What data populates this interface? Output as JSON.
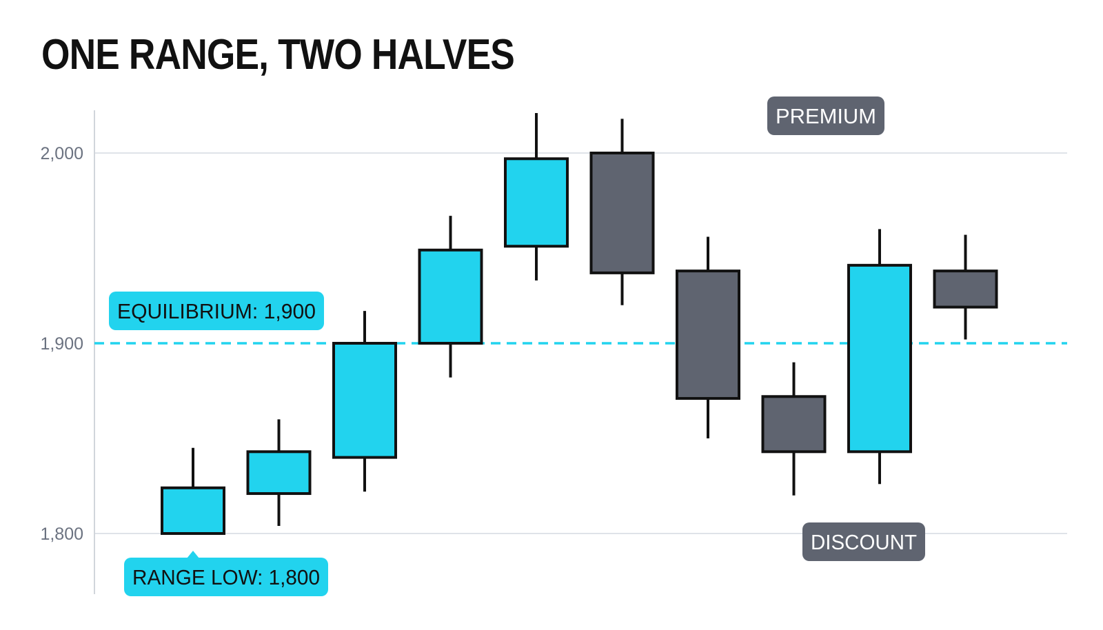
{
  "chart_data": {
    "type": "candlestick",
    "title": "ONE RANGE, TWO HALVES",
    "xlabel": "",
    "ylabel": "",
    "ylim": [
      1770,
      2023
    ],
    "yticks": [
      {
        "value": 1800,
        "label": "1,800"
      },
      {
        "value": 1900,
        "label": "1,900"
      },
      {
        "value": 2000,
        "label": "2,000"
      }
    ],
    "grid": true,
    "candles": [
      {
        "open": 1800,
        "high": 1845,
        "low": 1800,
        "close": 1824,
        "direction": "up"
      },
      {
        "open": 1821,
        "high": 1860,
        "low": 1804,
        "close": 1843,
        "direction": "up"
      },
      {
        "open": 1840,
        "high": 1917,
        "low": 1822,
        "close": 1900,
        "direction": "up"
      },
      {
        "open": 1900,
        "high": 1967,
        "low": 1882,
        "close": 1949,
        "direction": "up"
      },
      {
        "open": 1951,
        "high": 2021,
        "low": 1933,
        "close": 1997,
        "direction": "up"
      },
      {
        "open": 2000,
        "high": 2018,
        "low": 1920,
        "close": 1937,
        "direction": "down"
      },
      {
        "open": 1938,
        "high": 1956,
        "low": 1850,
        "close": 1871,
        "direction": "down"
      },
      {
        "open": 1872,
        "high": 1890,
        "low": 1820,
        "close": 1843,
        "direction": "down"
      },
      {
        "open": 1843,
        "high": 1960,
        "low": 1826,
        "close": 1941,
        "direction": "up"
      },
      {
        "open": 1938,
        "high": 1957,
        "low": 1902,
        "close": 1919,
        "direction": "down"
      }
    ],
    "equilibrium": {
      "value": 1900,
      "label": "EQUILIBRIUM: 1,900"
    },
    "range_low": {
      "value": 1800,
      "label": "RANGE LOW: 1,800"
    },
    "zones": {
      "premium": "PREMIUM",
      "discount": "DISCOUNT"
    },
    "colors": {
      "up": "#22d3ee",
      "down": "#5f6470",
      "outline": "#111111",
      "equilibrium_line": "#22d3ee",
      "tag_accent_bg": "#22d3ee",
      "tag_accent_text": "#111111",
      "tag_zone_bg": "#5f6470",
      "tag_zone_text": "#ffffff",
      "grid": "#dfe3e8",
      "axis": "#d1d5db"
    }
  }
}
